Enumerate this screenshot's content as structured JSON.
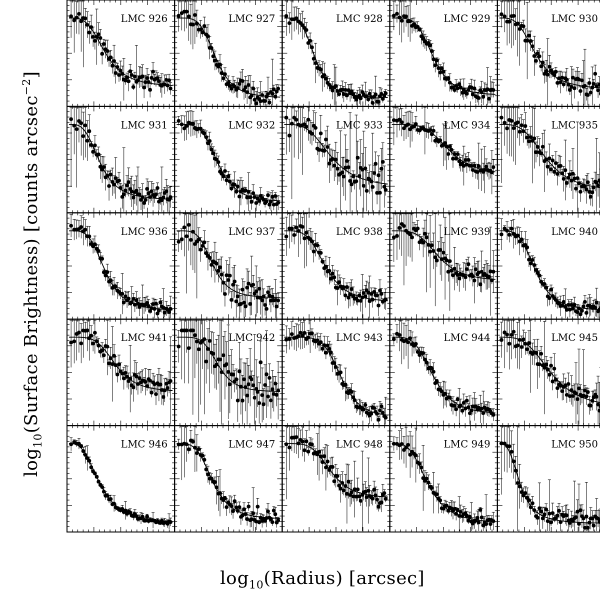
{
  "chart_data": {
    "type": "scatter",
    "panel_layout": "5x5",
    "xlabel": {
      "base": "log",
      "sub": "10",
      "rest": "(Radius) [arcsec]"
    },
    "ylabel": {
      "base": "log",
      "sub": "10",
      "mid": "(Surface Brightness) [counts arcsec",
      "sup": "−2",
      "end": "]"
    },
    "grid": false,
    "colors": {
      "marker": "#000000",
      "model_line": "#000000",
      "errorbar": "#000000"
    },
    "panels": [
      {
        "label": "LMC 926",
        "model": "king",
        "level": 0.18,
        "core": 0.35,
        "slope": 3.5,
        "noise": 0.08,
        "spread": 0.4
      },
      {
        "label": "LMC 927",
        "model": "king",
        "level": 0.05,
        "core": 0.38,
        "slope": 4.5,
        "noise": 0.08,
        "spread": 0.3
      },
      {
        "label": "LMC 928",
        "model": "king",
        "level": 0.05,
        "core": 0.3,
        "slope": 4.0,
        "noise": 0.06,
        "spread": 0.2
      },
      {
        "label": "LMC 929",
        "model": "king",
        "level": 0.08,
        "core": 0.4,
        "slope": 4.5,
        "noise": 0.06,
        "spread": 0.3
      },
      {
        "label": "LMC 930",
        "model": "king",
        "level": 0.15,
        "core": 0.35,
        "slope": 3.5,
        "noise": 0.08,
        "spread": 0.45
      },
      {
        "label": "LMC 931",
        "model": "king",
        "level": 0.1,
        "core": 0.3,
        "slope": 3.5,
        "noise": 0.1,
        "spread": 0.5
      },
      {
        "label": "LMC 932",
        "model": "king",
        "level": 0.08,
        "core": 0.4,
        "slope": 4.5,
        "noise": 0.06,
        "spread": 0.2
      },
      {
        "label": "LMC 933",
        "model": "king",
        "level": 0.25,
        "core": 0.45,
        "slope": 3.5,
        "noise": 0.14,
        "spread": 0.6
      },
      {
        "label": "LMC 934",
        "model": "king",
        "level": 0.4,
        "core": 0.55,
        "slope": 4.5,
        "noise": 0.06,
        "spread": 0.25
      },
      {
        "label": "LMC 935",
        "model": "king",
        "level": 0.2,
        "core": 0.45,
        "slope": 3.5,
        "noise": 0.1,
        "spread": 0.55
      },
      {
        "label": "LMC 936",
        "model": "king",
        "level": 0.05,
        "core": 0.35,
        "slope": 4.0,
        "noise": 0.06,
        "spread": 0.15
      },
      {
        "label": "LMC 937",
        "model": "king",
        "level": 0.2,
        "core": 0.35,
        "slope": 4.5,
        "noise": 0.14,
        "spread": 0.4
      },
      {
        "label": "LMC 938",
        "model": "king",
        "level": 0.15,
        "core": 0.4,
        "slope": 4.0,
        "noise": 0.08,
        "spread": 0.3
      },
      {
        "label": "LMC 939",
        "model": "king",
        "level": 0.4,
        "core": 0.45,
        "slope": 4.0,
        "noise": 0.1,
        "spread": 0.55
      },
      {
        "label": "LMC 940",
        "model": "king",
        "level": 0.05,
        "core": 0.35,
        "slope": 4.0,
        "noise": 0.06,
        "spread": 0.15
      },
      {
        "label": "LMC 941",
        "model": "king",
        "level": 0.35,
        "core": 0.45,
        "slope": 4.5,
        "noise": 0.1,
        "spread": 0.45
      },
      {
        "label": "LMC 942",
        "model": "king",
        "level": 0.35,
        "core": 0.4,
        "slope": 5.0,
        "noise": 0.2,
        "spread": 0.7
      },
      {
        "label": "LMC 943",
        "model": "king",
        "level": 0.05,
        "core": 0.55,
        "slope": 6.0,
        "noise": 0.06,
        "spread": 0.2
      },
      {
        "label": "LMC 944",
        "model": "king",
        "level": 0.08,
        "core": 0.4,
        "slope": 4.0,
        "noise": 0.06,
        "spread": 0.2
      },
      {
        "label": "LMC 945",
        "model": "king",
        "level": 0.15,
        "core": 0.5,
        "slope": 3.5,
        "noise": 0.1,
        "spread": 0.5
      },
      {
        "label": "LMC 946",
        "model": "king",
        "level": 0.05,
        "core": 0.3,
        "slope": 3.0,
        "noise": 0.03,
        "spread": 0.1
      },
      {
        "label": "LMC 947",
        "model": "king",
        "level": 0.1,
        "core": 0.35,
        "slope": 4.0,
        "noise": 0.06,
        "spread": 0.3
      },
      {
        "label": "LMC 948",
        "model": "king",
        "level": 0.35,
        "core": 0.45,
        "slope": 4.5,
        "noise": 0.08,
        "spread": 0.4
      },
      {
        "label": "LMC 949",
        "model": "king",
        "level": 0.05,
        "core": 0.35,
        "slope": 3.5,
        "noise": 0.06,
        "spread": 0.3
      },
      {
        "label": "LMC 950",
        "model": "king",
        "level": 0.05,
        "core": 0.2,
        "slope": 3.0,
        "noise": 0.08,
        "spread": 0.45
      }
    ]
  }
}
